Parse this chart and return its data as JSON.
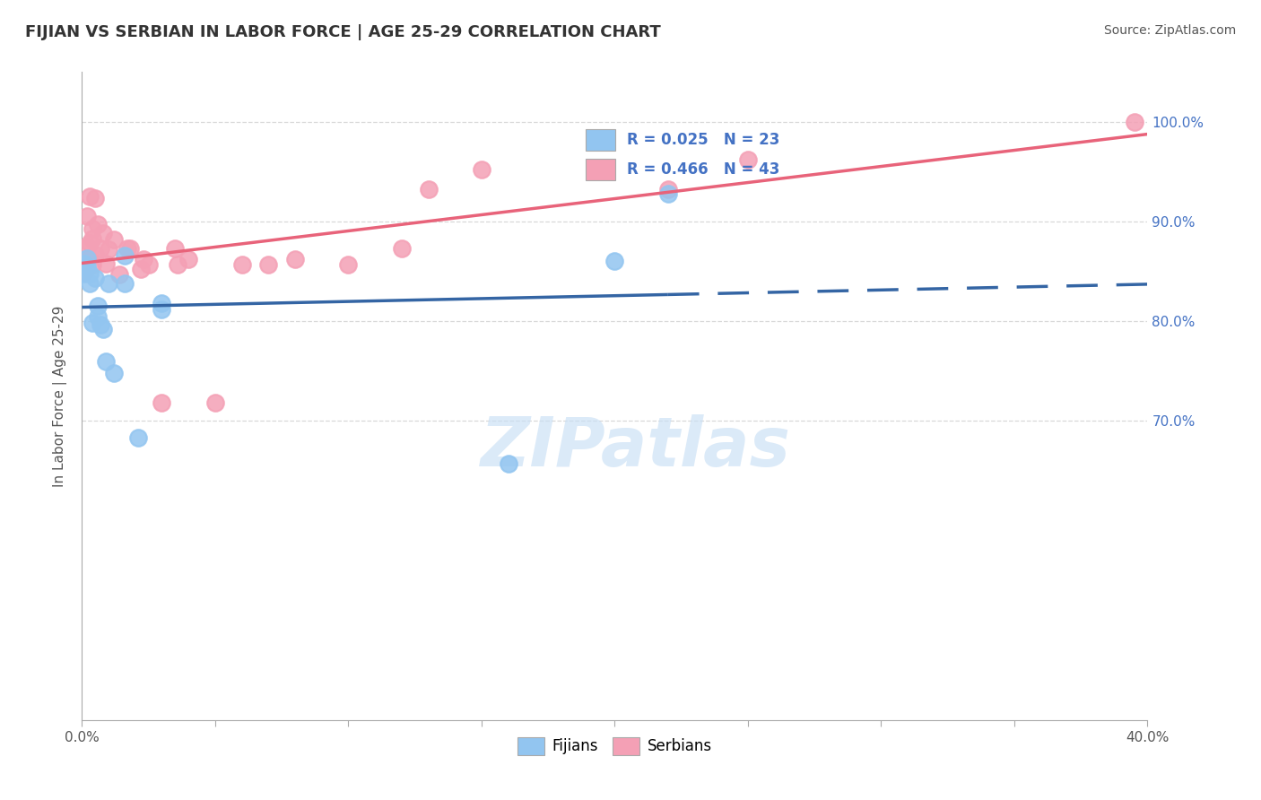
{
  "title": "FIJIAN VS SERBIAN IN LABOR FORCE | AGE 25-29 CORRELATION CHART",
  "source_text": "Source: ZipAtlas.com",
  "ylabel": "In Labor Force | Age 25-29",
  "xlim": [
    0.0,
    0.4
  ],
  "ylim": [
    0.4,
    1.05
  ],
  "ytick_positions": [
    0.7,
    0.8,
    0.9,
    1.0
  ],
  "ytick_labels": [
    "70.0%",
    "80.0%",
    "90.0%",
    "100.0%"
  ],
  "xtick_positions": [
    0.0,
    0.05,
    0.1,
    0.15,
    0.2,
    0.25,
    0.3,
    0.35,
    0.4
  ],
  "legend_fijian_label": "Fijians",
  "legend_serbian_label": "Serbians",
  "r_fijian": "0.025",
  "n_fijian": "23",
  "r_serbian": "0.466",
  "n_serbian": "43",
  "fijian_color": "#92c5f0",
  "serbian_color": "#f4a0b5",
  "fijian_line_color": "#3465a4",
  "serbian_line_color": "#e8637a",
  "watermark": "ZIPatlas",
  "fijian_x": [
    0.001,
    0.001,
    0.002,
    0.002,
    0.003,
    0.003,
    0.004,
    0.005,
    0.006,
    0.006,
    0.007,
    0.008,
    0.009,
    0.01,
    0.012,
    0.016,
    0.016,
    0.021,
    0.03,
    0.03,
    0.16,
    0.2,
    0.22
  ],
  "fijian_y": [
    0.858,
    0.848,
    0.863,
    0.855,
    0.848,
    0.838,
    0.798,
    0.843,
    0.815,
    0.805,
    0.797,
    0.792,
    0.76,
    0.838,
    0.748,
    0.866,
    0.838,
    0.683,
    0.818,
    0.812,
    0.657,
    0.86,
    0.928
  ],
  "serbian_x": [
    0.001,
    0.001,
    0.001,
    0.001,
    0.001,
    0.001,
    0.002,
    0.002,
    0.002,
    0.003,
    0.003,
    0.004,
    0.004,
    0.004,
    0.005,
    0.005,
    0.006,
    0.007,
    0.008,
    0.009,
    0.01,
    0.012,
    0.014,
    0.017,
    0.018,
    0.022,
    0.023,
    0.025,
    0.03,
    0.035,
    0.036,
    0.04,
    0.05,
    0.06,
    0.07,
    0.08,
    0.1,
    0.12,
    0.13,
    0.15,
    0.22,
    0.25,
    0.395
  ],
  "serbian_y": [
    0.86,
    0.858,
    0.856,
    0.854,
    0.852,
    0.85,
    0.875,
    0.905,
    0.862,
    0.878,
    0.925,
    0.893,
    0.883,
    0.857,
    0.867,
    0.923,
    0.897,
    0.873,
    0.888,
    0.858,
    0.872,
    0.882,
    0.847,
    0.873,
    0.873,
    0.852,
    0.862,
    0.857,
    0.718,
    0.873,
    0.857,
    0.862,
    0.718,
    0.857,
    0.857,
    0.862,
    0.857,
    0.873,
    0.932,
    0.952,
    0.932,
    0.962,
    1.0
  ],
  "background_color": "#ffffff",
  "grid_color": "#d8d8d8",
  "grid_style": "--"
}
